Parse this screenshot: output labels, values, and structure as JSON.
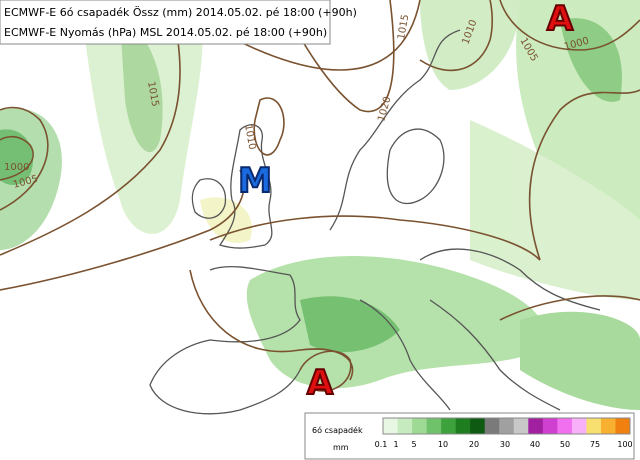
{
  "header": {
    "lines": [
      "ECMWF-E 6ó csapadék Össz (mm) 2014.05.02. pé 18:00 (+90h)",
      "ECMWF-E Nyomás (hPa) MSL 2014.05.02. pé 18:00 (+90h)"
    ]
  },
  "centers": [
    {
      "label": "A"
    },
    {
      "label": "M"
    },
    {
      "label": "A"
    }
  ],
  "isobar_labels": [
    "1000",
    "1005",
    "1015",
    "1015",
    "1020",
    "1010",
    "1010",
    "1005",
    "1000"
  ],
  "legend": {
    "title": "6ó csapadék",
    "unit": "mm",
    "ticks": [
      "0.1",
      "1",
      "5",
      "10",
      "20",
      "30",
      "40",
      "50",
      "75",
      "100"
    ]
  }
}
